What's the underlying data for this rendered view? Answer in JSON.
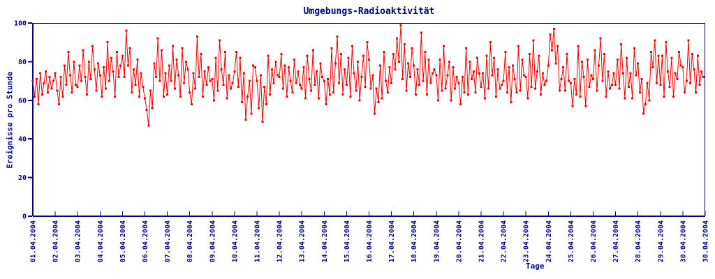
{
  "chart_data": {
    "type": "line",
    "title": "Umgebungs-Radioaktivität",
    "xlabel": "Tage",
    "ylabel": "Ereignisse pro Stunde",
    "ylim": [
      0,
      100
    ],
    "yticks": [
      0,
      20,
      40,
      60,
      80,
      100
    ],
    "grid": false,
    "legend": null,
    "marker": "filled-square",
    "points_per_day": 12,
    "colors": {
      "series": "#ee0000",
      "axis": "#000080",
      "background": "#ffffff"
    },
    "xtick_labels": [
      "01.04.2004",
      "02.04.2004",
      "03.04.2004",
      "04.04.2004",
      "05.04.2004",
      "06.04.2004",
      "07.04.2004",
      "08.04.2004",
      "09.04.2004",
      "10.04.2004",
      "11.04.2004",
      "12.04.2004",
      "13.04.2004",
      "14.04.2004",
      "15.04.2004",
      "16.04.2004",
      "17.04.2004",
      "18.04.2004",
      "19.04.2004",
      "20.04.2004",
      "21.04.2004",
      "22.04.2004",
      "23.04.2004",
      "24.04.2004",
      "25.04.2004",
      "26.04.2004",
      "27.04.2004",
      "28.04.2004",
      "29.04.2004",
      "30.04.2004",
      "30.04.2004"
    ],
    "values": [
      70,
      62,
      71,
      58,
      74,
      63,
      69,
      75,
      64,
      72,
      66,
      70,
      74,
      65,
      58,
      72,
      62,
      78,
      68,
      85,
      73,
      64,
      80,
      68,
      67,
      78,
      70,
      86,
      72,
      63,
      80,
      71,
      88,
      76,
      65,
      79,
      73,
      62,
      77,
      66,
      90,
      70,
      82,
      75,
      62,
      85,
      72,
      78,
      83,
      72,
      96,
      78,
      87,
      64,
      76,
      68,
      81,
      62,
      74,
      67,
      61,
      55,
      47,
      65,
      56,
      79,
      72,
      92,
      70,
      86,
      62,
      74,
      63,
      78,
      70,
      88,
      66,
      81,
      73,
      62,
      87,
      69,
      80,
      76,
      64,
      58,
      74,
      66,
      93,
      72,
      84,
      62,
      75,
      68,
      77,
      70,
      71,
      60,
      82,
      65,
      91,
      76,
      68,
      85,
      61,
      73,
      66,
      69,
      75,
      85,
      67,
      82,
      59,
      74,
      50,
      62,
      70,
      53,
      78,
      77,
      70,
      56,
      73,
      49,
      67,
      58,
      83,
      63,
      76,
      69,
      80,
      73,
      72,
      84,
      66,
      78,
      62,
      77,
      70,
      64,
      81,
      69,
      75,
      68,
      66,
      77,
      61,
      83,
      71,
      65,
      86,
      68,
      75,
      61,
      79,
      72,
      70,
      58,
      71,
      63,
      87,
      64,
      79,
      93,
      69,
      84,
      63,
      76,
      68,
      82,
      62,
      88,
      74,
      65,
      80,
      60,
      72,
      83,
      67,
      90,
      81,
      66,
      73,
      53,
      66,
      59,
      78,
      61,
      85,
      70,
      64,
      77,
      69,
      84,
      76,
      92,
      80,
      99,
      71,
      89,
      65,
      79,
      72,
      87,
      78,
      63,
      76,
      68,
      95,
      70,
      85,
      63,
      81,
      69,
      74,
      76,
      73,
      60,
      81,
      65,
      88,
      66,
      73,
      80,
      60,
      77,
      66,
      72,
      69,
      58,
      72,
      64,
      87,
      63,
      80,
      71,
      75,
      64,
      82,
      74,
      67,
      74,
      61,
      83,
      66,
      90,
      73,
      82,
      62,
      76,
      66,
      68,
      70,
      85,
      64,
      77,
      59,
      78,
      71,
      64,
      88,
      65,
      81,
      73,
      72,
      61,
      84,
      67,
      91,
      66,
      75,
      83,
      63,
      74,
      68,
      70,
      78,
      94,
      86,
      97,
      79,
      88,
      65,
      71,
      77,
      65,
      84,
      70,
      69,
      57,
      71,
      63,
      88,
      62,
      80,
      72,
      57,
      81,
      67,
      73,
      71,
      86,
      65,
      78,
      92,
      70,
      84,
      62,
      75,
      66,
      68,
      74,
      68,
      81,
      66,
      89,
      74,
      61,
      82,
      67,
      74,
      61,
      87,
      73,
      79,
      64,
      71,
      53,
      58,
      69,
      60,
      85,
      77,
      91,
      69,
      83,
      68,
      83,
      62,
      90,
      75,
      67,
      82,
      62,
      74,
      71,
      85,
      78,
      77,
      64,
      70,
      91,
      69,
      84,
      76,
      64,
      83,
      68,
      75,
      72
    ]
  }
}
